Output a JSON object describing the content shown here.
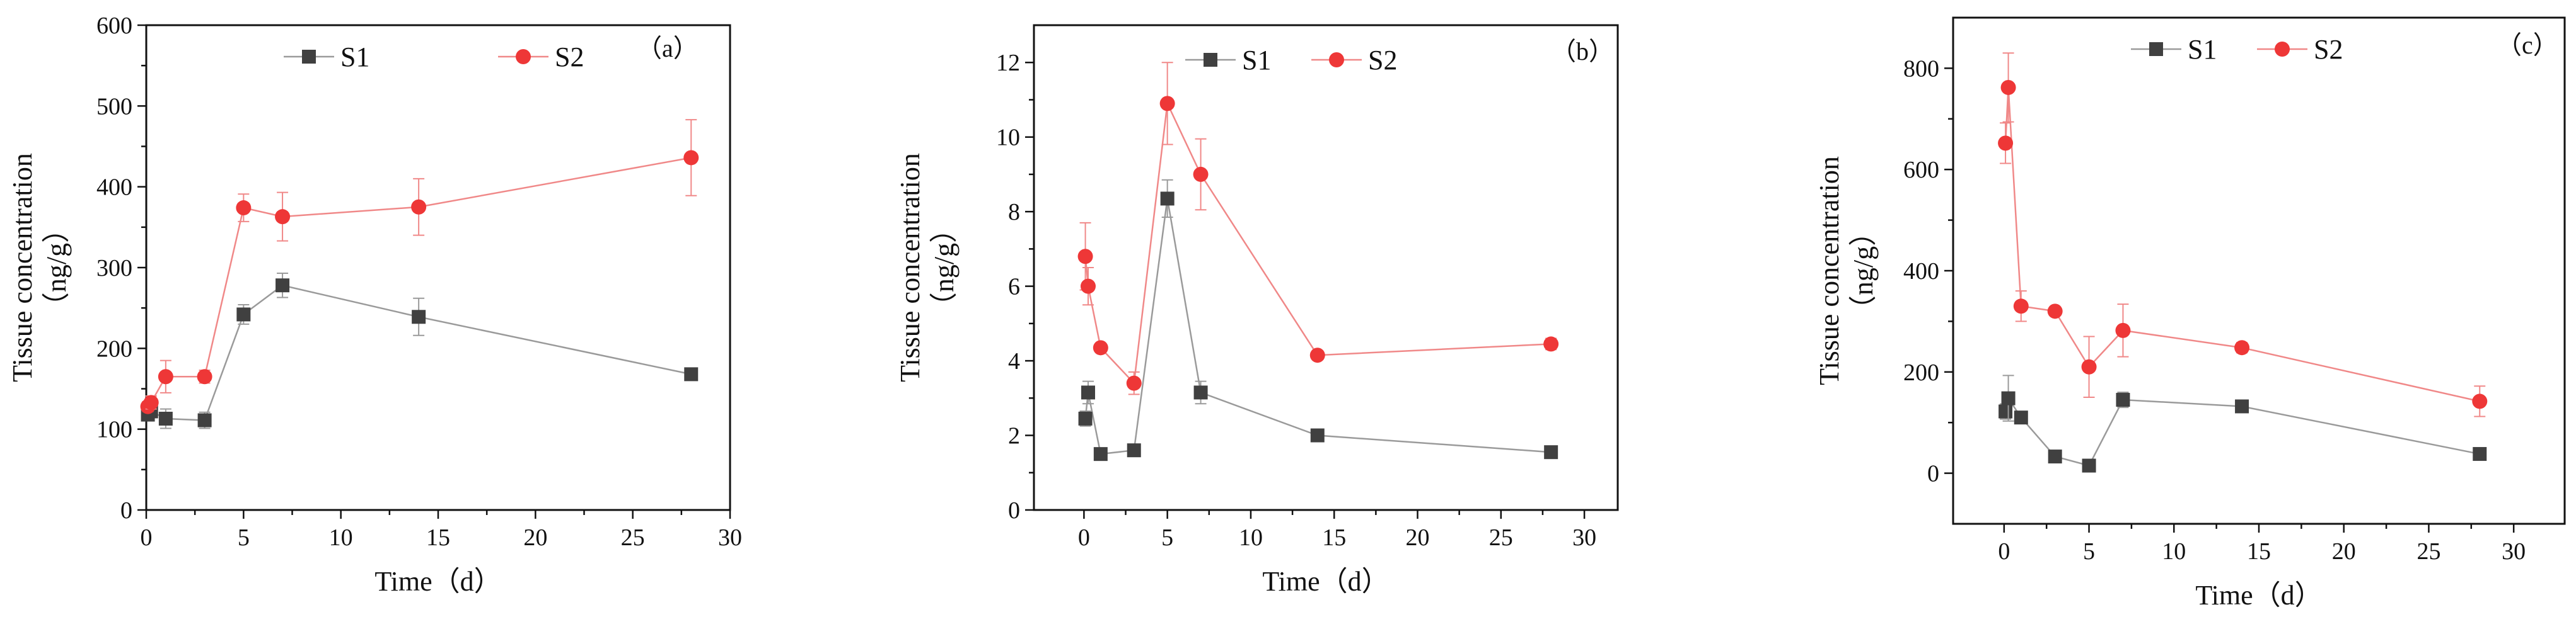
{
  "colors": {
    "S1": "#404040",
    "S1_line": "#9a9a9a",
    "S2": "#ee3737",
    "S2_line": "#f08888",
    "axis": "#111111"
  },
  "chart_data": [
    {
      "type": "line",
      "panel_label": "（a）",
      "xlabel": "Time（d）",
      "ylabel": "Tissue concentration",
      "ylabel_unit": "（ng/g）",
      "xlim": [
        0,
        30
      ],
      "ylim": [
        0,
        600
      ],
      "xticks": [
        0,
        5,
        10,
        15,
        20,
        25,
        30
      ],
      "yticks": [
        0,
        100,
        200,
        300,
        400,
        500,
        600
      ],
      "xtick_labels": [
        "0",
        "5",
        "10",
        "15",
        "20",
        "25",
        "30"
      ],
      "ytick_labels": [
        "0",
        "100",
        "200",
        "300",
        "400",
        "500",
        "600"
      ],
      "legend_labels": [
        "S1",
        "S2"
      ],
      "series": [
        {
          "name": "S1",
          "x": [
            0.083,
            0.25,
            1,
            3,
            5,
            7,
            14,
            28
          ],
          "values": [
            118,
            122,
            113,
            111,
            242,
            278,
            239,
            168
          ],
          "err": [
            5,
            6,
            12,
            10,
            12,
            15,
            23,
            5
          ]
        },
        {
          "name": "S2",
          "x": [
            0.083,
            0.25,
            1,
            3,
            5,
            7,
            14,
            28
          ],
          "values": [
            128,
            133,
            165,
            165,
            374,
            363,
            375,
            436
          ],
          "err": [
            6,
            8,
            20,
            8,
            17,
            30,
            35,
            47
          ]
        }
      ]
    },
    {
      "type": "line",
      "panel_label": "（b）",
      "xlabel": "Time（d）",
      "ylabel": "Tissue concentration",
      "ylabel_unit": "（ng/g）",
      "xlim": [
        -3,
        32
      ],
      "ylim": [
        0,
        13
      ],
      "xticks": [
        0,
        5,
        10,
        15,
        20,
        25,
        30
      ],
      "yticks": [
        0,
        2,
        4,
        6,
        8,
        10,
        12
      ],
      "xtick_labels": [
        "0",
        "5",
        "10",
        "15",
        "20",
        "25",
        "30"
      ],
      "ytick_labels": [
        "0",
        "2",
        "4",
        "6",
        "8",
        "10",
        "12"
      ],
      "legend_labels": [
        "S1",
        "S2"
      ],
      "series": [
        {
          "name": "S1",
          "x": [
            0.083,
            0.25,
            1,
            3,
            5,
            7,
            14,
            28
          ],
          "values": [
            2.45,
            3.15,
            1.5,
            1.6,
            8.35,
            3.15,
            2.0,
            1.55
          ],
          "err": [
            0.2,
            0.3,
            0.1,
            0.1,
            0.5,
            0.3,
            0.1,
            0.1
          ]
        },
        {
          "name": "S2",
          "x": [
            0.083,
            0.25,
            1,
            3,
            5,
            7,
            14,
            28
          ],
          "values": [
            6.8,
            6.0,
            4.35,
            3.4,
            10.9,
            9.0,
            4.15,
            4.45
          ],
          "err": [
            0.9,
            0.5,
            0.1,
            0.3,
            1.1,
            0.95,
            0.1,
            0.15
          ]
        }
      ]
    },
    {
      "type": "line",
      "panel_label": "（c）",
      "xlabel": "Time（d）",
      "ylabel": "Tissue concentration",
      "ylabel_unit": "（ng/g）",
      "xlim": [
        -3,
        33
      ],
      "ylim": [
        -100,
        900
      ],
      "xticks": [
        0,
        5,
        10,
        15,
        20,
        25,
        30
      ],
      "yticks": [
        0,
        200,
        400,
        600,
        800
      ],
      "xtick_labels": [
        "0",
        "5",
        "10",
        "15",
        "20",
        "25",
        "30"
      ],
      "ytick_labels": [
        "0",
        "200",
        "400",
        "600",
        "800"
      ],
      "legend_labels": [
        "S1",
        "S2"
      ],
      "series": [
        {
          "name": "S1",
          "x": [
            0.083,
            0.25,
            1,
            3,
            5,
            7,
            14,
            28
          ],
          "values": [
            122,
            148,
            110,
            33,
            15,
            145,
            132,
            38
          ],
          "err": [
            15,
            45,
            8,
            5,
            5,
            15,
            8,
            5
          ]
        },
        {
          "name": "S2",
          "x": [
            0.083,
            0.25,
            1,
            3,
            5,
            7,
            14,
            28
          ],
          "values": [
            652,
            762,
            330,
            320,
            210,
            282,
            248,
            142
          ],
          "err": [
            40,
            68,
            30,
            8,
            60,
            52,
            10,
            30
          ]
        }
      ]
    }
  ]
}
